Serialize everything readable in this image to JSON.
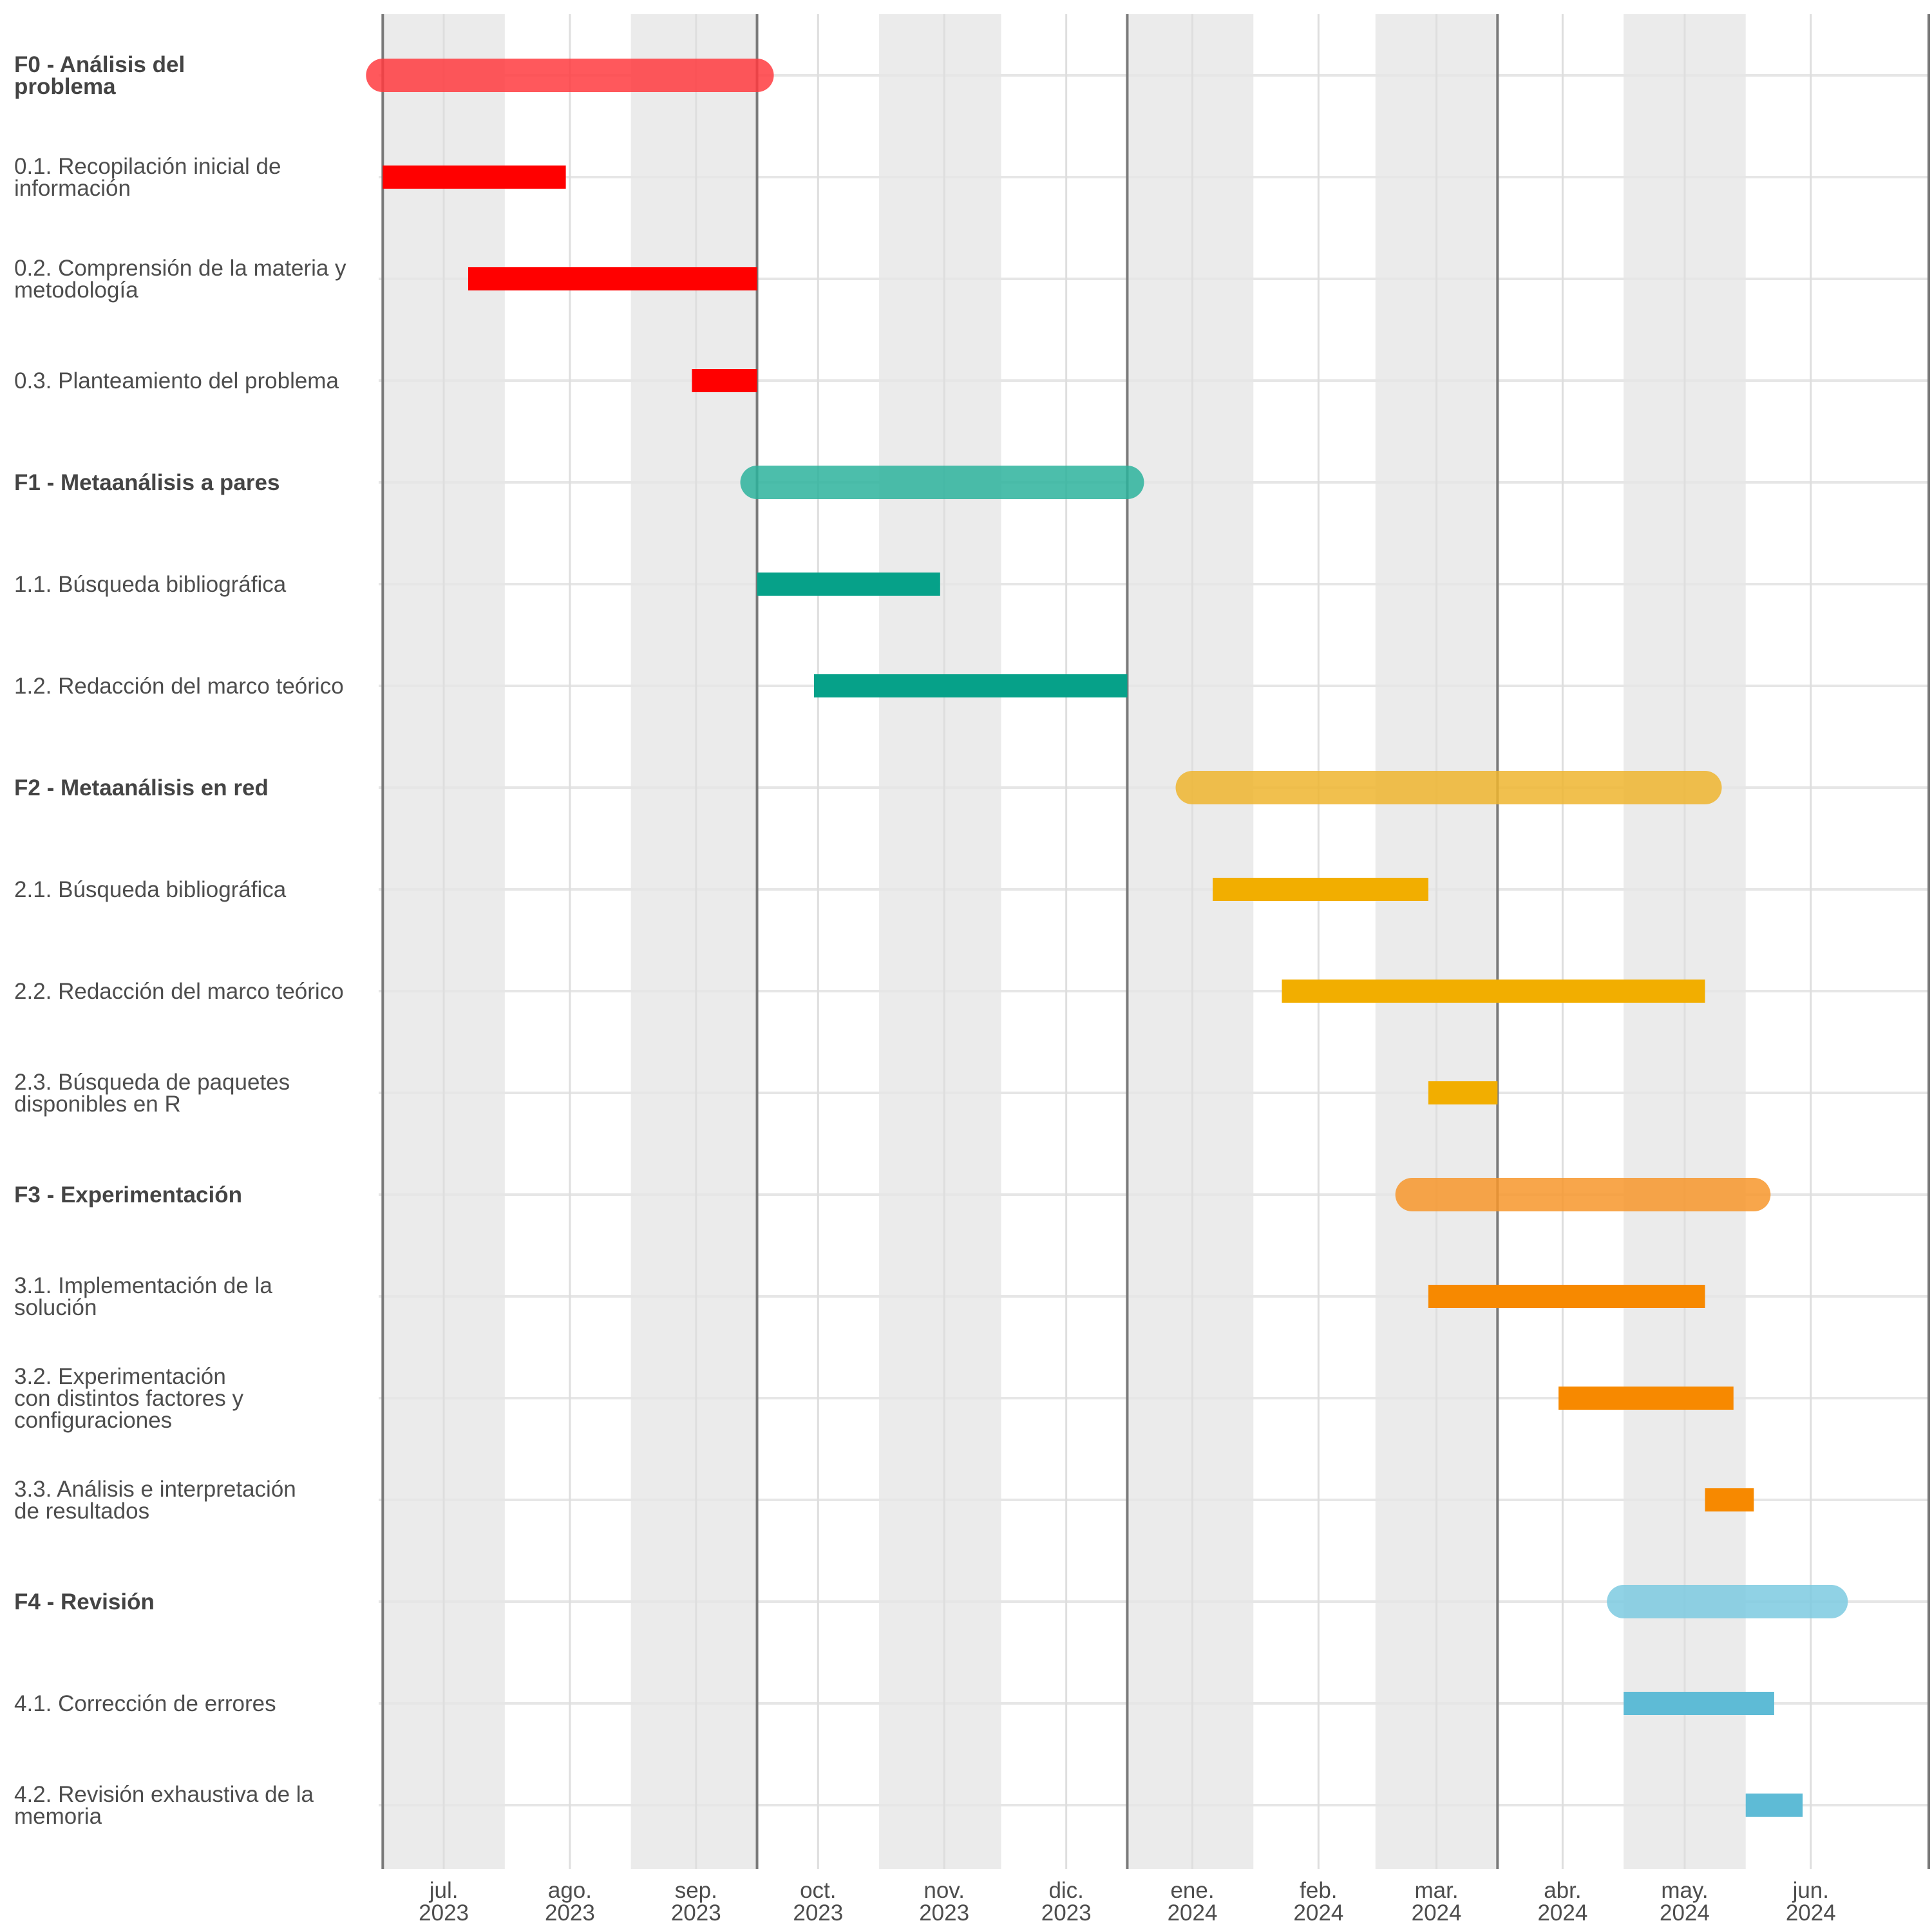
{
  "chart_data": {
    "type": "gantt",
    "title": "",
    "xlabel": "",
    "ylabel": "",
    "x_range": [
      "2023-06-15",
      "2024-06-30"
    ],
    "grid": true,
    "legend": "none",
    "shaded_bands": [
      {
        "start": "2023-06-16",
        "end": "2023-07-16"
      },
      {
        "start": "2023-08-16",
        "end": "2023-09-16"
      },
      {
        "start": "2023-10-16",
        "end": "2023-11-15"
      },
      {
        "start": "2023-12-16",
        "end": "2024-01-16"
      },
      {
        "start": "2024-02-15",
        "end": "2024-03-16"
      },
      {
        "start": "2024-04-16",
        "end": "2024-05-16"
      }
    ],
    "milestone_lines": [
      "2023-06-16",
      "2023-09-16",
      "2023-12-16",
      "2024-03-16",
      "2024-06-30"
    ],
    "x_ticks": [
      {
        "date": "2023-07-01",
        "month": "jul.",
        "year": "2023"
      },
      {
        "date": "2023-08-01",
        "month": "ago.",
        "year": "2023"
      },
      {
        "date": "2023-09-01",
        "month": "sep.",
        "year": "2023"
      },
      {
        "date": "2023-10-01",
        "month": "oct.",
        "year": "2023"
      },
      {
        "date": "2023-11-01",
        "month": "nov.",
        "year": "2023"
      },
      {
        "date": "2023-12-01",
        "month": "dic.",
        "year": "2023"
      },
      {
        "date": "2024-01-01",
        "month": "ene.",
        "year": "2024"
      },
      {
        "date": "2024-02-01",
        "month": "feb.",
        "year": "2024"
      },
      {
        "date": "2024-03-01",
        "month": "mar.",
        "year": "2024"
      },
      {
        "date": "2024-04-01",
        "month": "abr.",
        "year": "2024"
      },
      {
        "date": "2024-05-01",
        "month": "may.",
        "year": "2024"
      },
      {
        "date": "2024-06-01",
        "month": "jun.",
        "year": "2024"
      }
    ],
    "tasks": [
      {
        "label": [
          "F0 - Análisis del",
          "problema"
        ],
        "phase": true,
        "start": "2023-06-16",
        "end": "2023-09-16",
        "color": "#ff3b3f"
      },
      {
        "label": [
          "0.1. Recopilación inicial de",
          "información"
        ],
        "phase": false,
        "start": "2023-06-16",
        "end": "2023-07-31",
        "color": "#ff0000"
      },
      {
        "label": [
          "0.2. Comprensión de la materia y",
          "metodología"
        ],
        "phase": false,
        "start": "2023-07-07",
        "end": "2023-09-16",
        "color": "#ff0000"
      },
      {
        "label": [
          "0.3. Planteamiento del problema"
        ],
        "phase": false,
        "start": "2023-08-31",
        "end": "2023-09-16",
        "color": "#ff0000"
      },
      {
        "label": [
          "F1 - Metaanálisis a pares"
        ],
        "phase": true,
        "start": "2023-09-16",
        "end": "2023-12-16",
        "color": "#2db39c"
      },
      {
        "label": [
          "1.1. Búsqueda bibliográfica"
        ],
        "phase": false,
        "start": "2023-09-16",
        "end": "2023-10-31",
        "color": "#06a189"
      },
      {
        "label": [
          "1.2. Redacción del marco teórico"
        ],
        "phase": false,
        "start": "2023-09-30",
        "end": "2023-12-16",
        "color": "#06a189"
      },
      {
        "label": [
          "F2 - Metaanálisis en red"
        ],
        "phase": true,
        "start": "2024-01-01",
        "end": "2024-05-06",
        "color": "#efb52f"
      },
      {
        "label": [
          "2.1. Búsqueda bibliográfica"
        ],
        "phase": false,
        "start": "2024-01-06",
        "end": "2024-02-28",
        "color": "#f2ae00"
      },
      {
        "label": [
          "2.2. Redacción del marco teórico"
        ],
        "phase": false,
        "start": "2024-01-23",
        "end": "2024-05-06",
        "color": "#f2ae00"
      },
      {
        "label": [
          "2.3. Búsqueda de paquetes",
          "disponibles en R"
        ],
        "phase": false,
        "start": "2024-02-28",
        "end": "2024-03-16",
        "color": "#f2ae00"
      },
      {
        "label": [
          "F3 - Experimentación"
        ],
        "phase": true,
        "start": "2024-02-24",
        "end": "2024-05-18",
        "color": "#f7962b"
      },
      {
        "label": [
          "3.1. Implementación de la",
          "solución"
        ],
        "phase": false,
        "start": "2024-02-28",
        "end": "2024-05-06",
        "color": "#f78900"
      },
      {
        "label": [
          "3.2. Experimentación",
          "con distintos factores y",
          "configuraciones"
        ],
        "phase": false,
        "start": "2024-03-31",
        "end": "2024-05-13",
        "color": "#f78900"
      },
      {
        "label": [
          "3.3. Análisis e interpretación",
          "de resultados"
        ],
        "phase": false,
        "start": "2024-05-06",
        "end": "2024-05-18",
        "color": "#f78900"
      },
      {
        "label": [
          "F4 - Revisión"
        ],
        "phase": true,
        "start": "2024-04-16",
        "end": "2024-06-06",
        "color": "#7ccae0"
      },
      {
        "label": [
          "4.1. Corrección de errores"
        ],
        "phase": false,
        "start": "2024-04-16",
        "end": "2024-05-23",
        "color": "#5ebbd6"
      },
      {
        "label": [
          "4.2. Revisión exhaustiva de la",
          "memoria"
        ],
        "phase": false,
        "start": "2024-05-16",
        "end": "2024-05-30",
        "color": "#5ebbd6"
      }
    ]
  }
}
